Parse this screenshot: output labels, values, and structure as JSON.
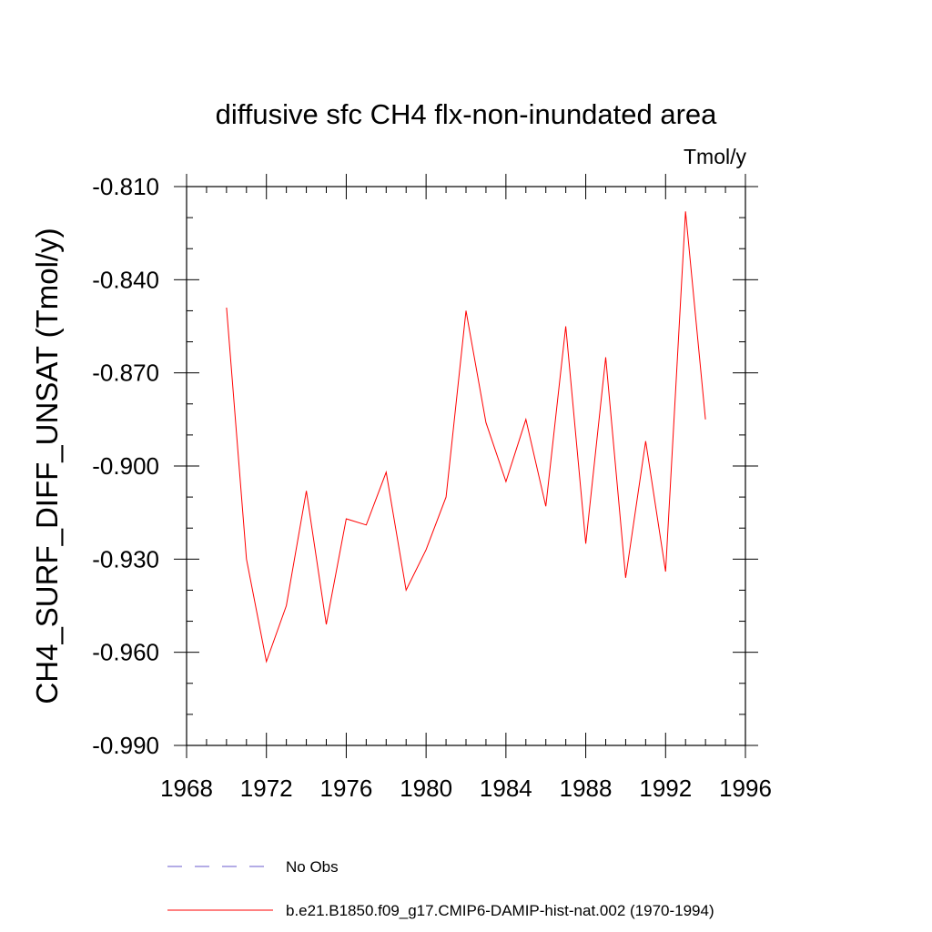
{
  "chart_data": {
    "type": "line",
    "title": "diffusive sfc CH4 flx-non-inundated area",
    "units_label": "Tmol/y",
    "ylabel": "CH4_SURF_DIFF_UNSAT  (Tmol/y)",
    "xlabel": "",
    "xlim": [
      1968,
      1996
    ],
    "ylim": [
      -0.99,
      -0.81
    ],
    "x_ticks": [
      1968,
      1972,
      1976,
      1980,
      1984,
      1988,
      1992,
      1996
    ],
    "x_tick_labels": [
      "1968",
      "1972",
      "1976",
      "1980",
      "1984",
      "1988",
      "1992",
      "1996"
    ],
    "y_ticks": [
      -0.81,
      -0.84,
      -0.87,
      -0.9,
      -0.93,
      -0.96,
      -0.99
    ],
    "y_tick_labels": [
      "-0.810",
      "-0.840",
      "-0.870",
      "-0.900",
      "-0.930",
      "-0.960",
      "-0.990"
    ],
    "x_minor_step": 1,
    "y_minor_step": 0.01,
    "grid": false,
    "series": [
      {
        "name": "b.e21.B1850.f09_g17.CMIP6-DAMIP-hist-nat.002 (1970-1994)",
        "color": "#ff0000",
        "style": "solid",
        "x": [
          1970,
          1971,
          1972,
          1973,
          1974,
          1975,
          1976,
          1977,
          1978,
          1979,
          1980,
          1981,
          1982,
          1983,
          1984,
          1985,
          1986,
          1987,
          1988,
          1989,
          1990,
          1991,
          1992,
          1993,
          1994
        ],
        "y": [
          -0.849,
          -0.93,
          -0.963,
          -0.945,
          -0.908,
          -0.951,
          -0.917,
          -0.919,
          -0.902,
          -0.94,
          -0.927,
          -0.91,
          -0.85,
          -0.886,
          -0.905,
          -0.885,
          -0.913,
          -0.855,
          -0.925,
          -0.865,
          -0.936,
          -0.892,
          -0.934,
          -0.818,
          -0.885
        ]
      }
    ],
    "legend": [
      {
        "label": "No Obs",
        "color": "#6a5acd",
        "style": "dashed"
      },
      {
        "label": "b.e21.B1850.f09_g17.CMIP6-DAMIP-hist-nat.002 (1970-1994)",
        "color": "#ff0000",
        "style": "solid"
      }
    ],
    "legend_position": "bottom"
  }
}
